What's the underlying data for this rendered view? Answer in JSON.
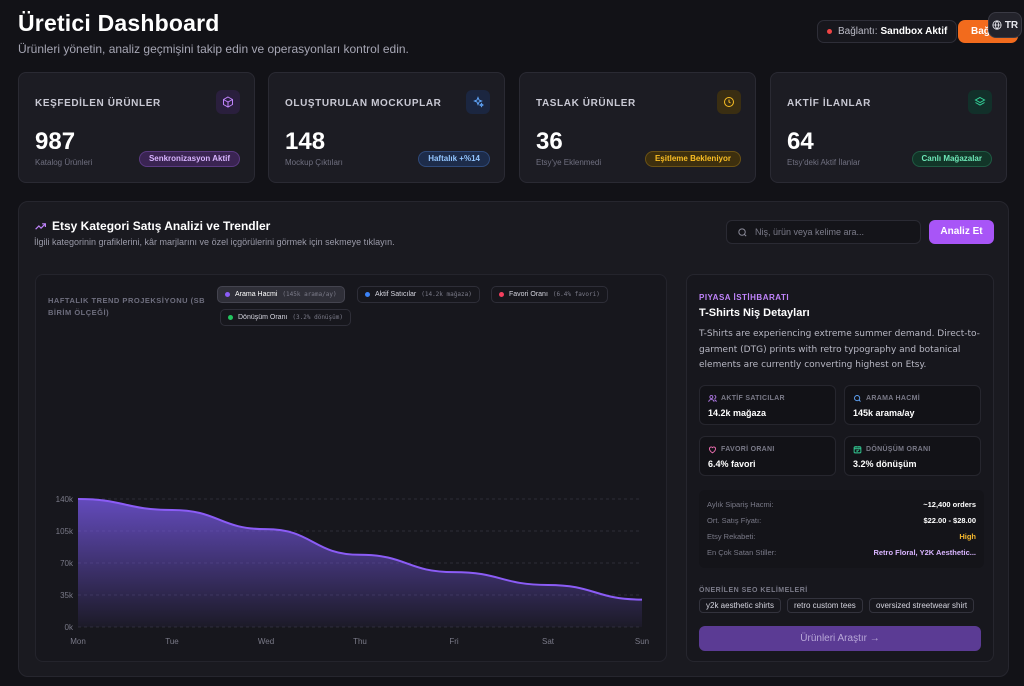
{
  "header": {
    "title": "Üretici Dashboard",
    "subtitle": "Ürünleri yönetin, analiz geçmişini takip edin ve operasyonları kontrol edin.",
    "connection_label": "Bağlantı:",
    "connection_status": "Sandbox Aktif",
    "action_button": "Bağ",
    "language": "TR"
  },
  "cards": [
    {
      "label": "KEŞFEDİLEN ÜRÜNLER",
      "value": "987",
      "sub": "Katalog Ürünleri",
      "badge": "Senkronizasyon Aktif"
    },
    {
      "label": "OLUŞTURULAN MOCKUPLAR",
      "value": "148",
      "sub": "Mockup Çıktıları",
      "badge": "Haftalık +%14"
    },
    {
      "label": "TASLAK ÜRÜNLER",
      "value": "36",
      "sub": "Etsy'ye Eklenmedi",
      "badge": "Eşitleme Bekleniyor"
    },
    {
      "label": "AKTİF İLANLAR",
      "value": "64",
      "sub": "Etsy'deki Aktif İlanlar",
      "badge": "Canlı Mağazalar"
    }
  ],
  "analysis": {
    "title": "Etsy Kategori Satış Analizi ve Trendler",
    "subtitle": "İlgili kategorinin grafiklerini, kâr marjlarını ve özel içgörülerini görmek için sekmeye tıklayın.",
    "search_placeholder": "Niş, ürün veya kelime ara...",
    "analyze_button": "Analiz Et"
  },
  "chart_title": "HAFTALIK TREND PROJEKSİYONU (SB BİRİM ÖLÇEĞİ)",
  "legend": [
    {
      "name": "Arama Hacmi",
      "value": "(145k arama/ay)",
      "color": "#8b5cf6",
      "active": true
    },
    {
      "name": "Aktif Satıcılar",
      "value": "(14.2k mağaza)",
      "color": "#3b82f6",
      "active": false
    },
    {
      "name": "Favori Oranı",
      "value": "(6.4% favori)",
      "color": "#f43f5e",
      "active": false
    },
    {
      "name": "Dönüşüm Oranı",
      "value": "(3.2% dönüşüm)",
      "color": "#22c55e",
      "active": false
    }
  ],
  "chart_data": {
    "type": "area",
    "title": "HAFTALIK TREND PROJEKSİYONU (SB BİRİM ÖLÇEĞİ)",
    "x": [
      "Mon",
      "Tue",
      "Wed",
      "Thu",
      "Fri",
      "Sat",
      "Sun"
    ],
    "y_ticks": [
      "0k",
      "35k",
      "70k",
      "105k",
      "140k"
    ],
    "ylim": [
      0,
      140000
    ],
    "series": [
      {
        "name": "Arama Hacmi",
        "values": [
          140000,
          128000,
          107000,
          79000,
          60000,
          46000,
          30000
        ],
        "color": "#8b5cf6"
      }
    ],
    "grid": true
  },
  "intel": {
    "tag": "PIYASA İSTİHBARATI",
    "title": "T-Shirts Niş Detayları",
    "description": "T-Shirts are experiencing extreme summer demand. Direct-to-garment (DTG) prints with retro typography and botanical elements are currently converting highest on Etsy.",
    "stats": [
      {
        "label": "AKTİF SATICILAR",
        "value": "14.2k mağaza"
      },
      {
        "label": "ARAMA HACMİ",
        "value": "145k arama/ay"
      },
      {
        "label": "FAVORİ ORANI",
        "value": "6.4% favori"
      },
      {
        "label": "DÖNÜŞÜM ORANI",
        "value": "3.2% dönüşüm"
      }
    ],
    "metrics": [
      {
        "key": "Aylık Sipariş Hacmi:",
        "value": "~12,400 orders"
      },
      {
        "key": "Ort. Satış Fiyatı:",
        "value": "$22.00 - $28.00"
      },
      {
        "key": "Etsy Rekabeti:",
        "value": "High"
      },
      {
        "key": "En Çok Satan Stiller:",
        "value": "Retro Floral, Y2K Aesthetic..."
      }
    ],
    "seo_label": "ÖNERİLEN SEO KELİMELERİ",
    "seo_tags": [
      "y2k aesthetic shirts",
      "retro custom tees",
      "oversized streetwear shirt"
    ],
    "explore_button": "Ürünleri Araştır →"
  },
  "colors": {
    "accent": "#a855f7",
    "orange": "#f26b1d",
    "competition_high": "#f5b82e",
    "styles_value": "#d8b4fe"
  }
}
